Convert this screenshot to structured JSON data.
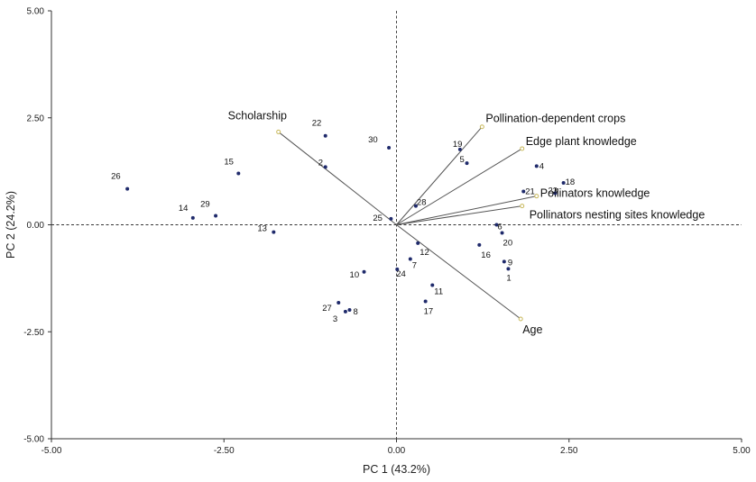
{
  "chart_data": {
    "type": "scatter",
    "subtype": "pca-biplot",
    "xlabel": "PC 1 (43.2%)",
    "ylabel": "PC 2 (24.2%)",
    "xlim": [
      -5,
      5
    ],
    "ylim": [
      -5,
      5
    ],
    "xticks": [
      "-5.00",
      "-2.50",
      "0.00",
      "2.50",
      "5.00"
    ],
    "yticks": [
      "5.00",
      "2.50",
      "0.00",
      "-2.50",
      "-5.00"
    ],
    "grid": false,
    "zero_lines": "dashed",
    "colors": {
      "point": "#1f2a6b",
      "vector": "#555555",
      "axis": "#333333",
      "arrow_tip": "#c8b85a"
    },
    "scores": [
      {
        "label": "1",
        "x": 1.62,
        "y": -1.03
      },
      {
        "label": "2",
        "x": -1.03,
        "y": 1.35
      },
      {
        "label": "3",
        "x": -0.74,
        "y": -2.03
      },
      {
        "label": "4",
        "x": 2.03,
        "y": 1.37
      },
      {
        "label": "5",
        "x": 1.02,
        "y": 1.44
      },
      {
        "label": "6",
        "x": 1.45,
        "y": 0.0
      },
      {
        "label": "7",
        "x": 0.2,
        "y": -0.8
      },
      {
        "label": "8",
        "x": -0.68,
        "y": -1.99
      },
      {
        "label": "9",
        "x": 1.56,
        "y": -0.86
      },
      {
        "label": "10",
        "x": -0.47,
        "y": -1.1
      },
      {
        "label": "11",
        "x": 0.52,
        "y": -1.41
      },
      {
        "label": "12",
        "x": 0.31,
        "y": -0.43
      },
      {
        "label": "13",
        "x": -1.78,
        "y": -0.17
      },
      {
        "label": "14",
        "x": -2.95,
        "y": 0.16
      },
      {
        "label": "15",
        "x": -2.29,
        "y": 1.2
      },
      {
        "label": "16",
        "x": 1.2,
        "y": -0.47
      },
      {
        "label": "17",
        "x": 0.42,
        "y": -1.79
      },
      {
        "label": "18",
        "x": 2.42,
        "y": 0.98
      },
      {
        "label": "19",
        "x": 0.92,
        "y": 1.76
      },
      {
        "label": "20",
        "x": 1.53,
        "y": -0.19
      },
      {
        "label": "21",
        "x": 1.84,
        "y": 0.78
      },
      {
        "label": "22",
        "x": -1.03,
        "y": 2.08
      },
      {
        "label": "23",
        "x": 2.3,
        "y": 0.74
      },
      {
        "label": "24",
        "x": 0.01,
        "y": -1.04
      },
      {
        "label": "25",
        "x": -0.08,
        "y": 0.14
      },
      {
        "label": "26",
        "x": -3.9,
        "y": 0.84
      },
      {
        "label": "27",
        "x": -0.84,
        "y": -1.82
      },
      {
        "label": "28",
        "x": 0.28,
        "y": 0.44
      },
      {
        "label": "29",
        "x": -2.62,
        "y": 0.21
      },
      {
        "label": "30",
        "x": -0.11,
        "y": 1.8
      }
    ],
    "loadings": [
      {
        "label": "Scholarship",
        "x": -1.71,
        "y": 2.17
      },
      {
        "label": "Pollination-dependent crops",
        "x": 1.24,
        "y": 2.29
      },
      {
        "label": "Edge plant knowledge",
        "x": 1.82,
        "y": 1.78
      },
      {
        "label": "Pollinators knowledge",
        "x": 2.03,
        "y": 0.67
      },
      {
        "label": "Pollinators nesting sites knowledge",
        "x": 1.82,
        "y": 0.44
      },
      {
        "label": "Age",
        "x": 1.8,
        "y": -2.2
      }
    ]
  }
}
